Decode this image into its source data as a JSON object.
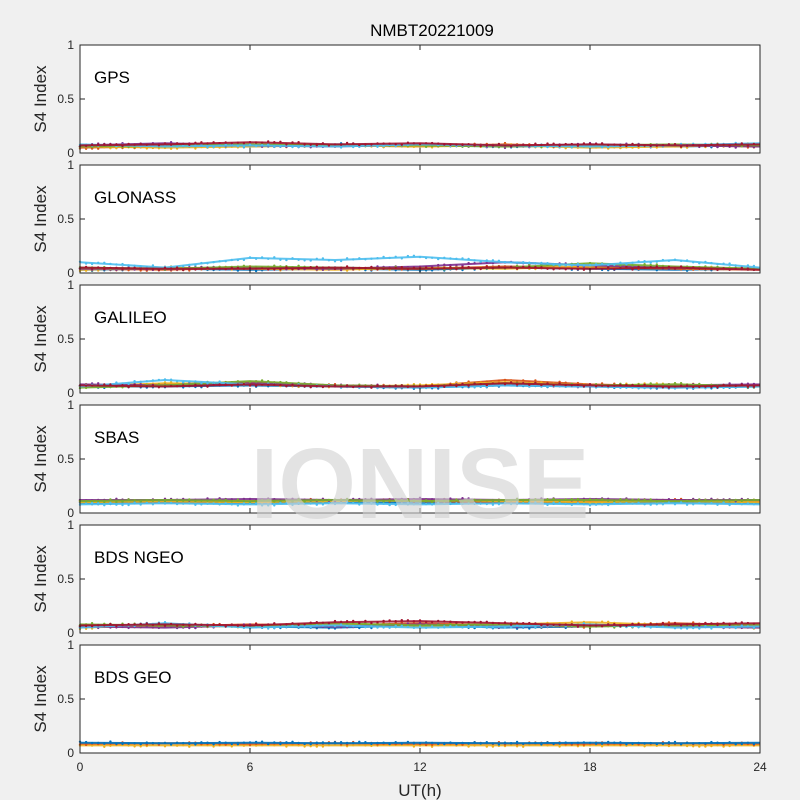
{
  "chart_data": {
    "type": "scatter",
    "title": "NMBT20221009",
    "xlabel": "UT(h)",
    "ylabel": "S4 Index",
    "xlim": [
      0,
      24
    ],
    "ylim": [
      0,
      1
    ],
    "xticks": [
      "0",
      "6",
      "12",
      "18",
      "24"
    ],
    "yticks": [
      "0",
      "0.5",
      "1"
    ],
    "grid": false,
    "watermark": "IONISE",
    "series_colors": [
      "#0072bd",
      "#d95319",
      "#edb120",
      "#7e2f8e",
      "#77ac30",
      "#4dbeee",
      "#a2142f"
    ],
    "panels": [
      {
        "name": "GPS",
        "tracks": [
          {
            "color": "#0072bd",
            "x": [
              0,
              3,
              6,
              9,
              12,
              15,
              18,
              21,
              24
            ],
            "y": [
              0.06,
              0.07,
              0.06,
              0.08,
              0.07,
              0.06,
              0.07,
              0.06,
              0.07
            ]
          },
          {
            "color": "#d95319",
            "x": [
              0,
              3,
              6,
              9,
              12,
              15,
              18,
              21,
              24
            ],
            "y": [
              0.05,
              0.06,
              0.08,
              0.07,
              0.06,
              0.08,
              0.06,
              0.07,
              0.06
            ]
          },
          {
            "color": "#edb120",
            "x": [
              0,
              3,
              6,
              9,
              12,
              15,
              18,
              21,
              24
            ],
            "y": [
              0.06,
              0.05,
              0.06,
              0.07,
              0.06,
              0.07,
              0.05,
              0.06,
              0.08
            ]
          },
          {
            "color": "#7e2f8e",
            "x": [
              0,
              3,
              6,
              9,
              12,
              15,
              18,
              21,
              24
            ],
            "y": [
              0.07,
              0.09,
              0.07,
              0.06,
              0.08,
              0.06,
              0.08,
              0.07,
              0.06
            ]
          },
          {
            "color": "#77ac30",
            "x": [
              0,
              3,
              6,
              9,
              12,
              15,
              18,
              21,
              24
            ],
            "y": [
              0.06,
              0.07,
              0.08,
              0.07,
              0.07,
              0.06,
              0.07,
              0.08,
              0.07
            ]
          },
          {
            "color": "#4dbeee",
            "x": [
              0,
              3,
              6,
              9,
              12,
              15,
              18,
              21,
              24
            ],
            "y": [
              0.08,
              0.06,
              0.07,
              0.06,
              0.08,
              0.07,
              0.06,
              0.07,
              0.09
            ]
          },
          {
            "color": "#a2142f",
            "x": [
              0,
              3,
              6,
              9,
              12,
              15,
              18,
              21,
              24
            ],
            "y": [
              0.07,
              0.08,
              0.1,
              0.08,
              0.09,
              0.07,
              0.08,
              0.07,
              0.08
            ]
          }
        ]
      },
      {
        "name": "GLONASS",
        "tracks": [
          {
            "color": "#0072bd",
            "x": [
              0,
              3,
              6,
              9,
              12,
              15,
              18,
              21,
              24
            ],
            "y": [
              0.03,
              0.04,
              0.03,
              0.04,
              0.03,
              0.05,
              0.04,
              0.03,
              0.04
            ]
          },
          {
            "color": "#d95319",
            "x": [
              0,
              3,
              6,
              9,
              12,
              15,
              18,
              21,
              24
            ],
            "y": [
              0.04,
              0.03,
              0.05,
              0.04,
              0.04,
              0.06,
              0.05,
              0.04,
              0.03
            ]
          },
          {
            "color": "#edb120",
            "x": [
              0,
              3,
              6,
              9,
              12,
              15,
              18,
              21,
              24
            ],
            "y": [
              0.03,
              0.05,
              0.04,
              0.03,
              0.05,
              0.04,
              0.06,
              0.05,
              0.04
            ]
          },
          {
            "color": "#7e2f8e",
            "x": [
              0,
              3,
              6,
              9,
              12,
              15,
              18,
              21,
              24
            ],
            "y": [
              0.04,
              0.04,
              0.05,
              0.04,
              0.06,
              0.1,
              0.07,
              0.05,
              0.04
            ]
          },
          {
            "color": "#77ac30",
            "x": [
              0,
              3,
              6,
              9,
              12,
              15,
              18,
              21,
              24
            ],
            "y": [
              0.05,
              0.04,
              0.06,
              0.05,
              0.04,
              0.05,
              0.09,
              0.06,
              0.04
            ]
          },
          {
            "color": "#4dbeee",
            "x": [
              0,
              3,
              6,
              9,
              12,
              15,
              18,
              21,
              24
            ],
            "y": [
              0.1,
              0.05,
              0.14,
              0.12,
              0.15,
              0.1,
              0.07,
              0.12,
              0.05
            ]
          },
          {
            "color": "#a2142f",
            "x": [
              0,
              3,
              6,
              9,
              12,
              15,
              18,
              21,
              24
            ],
            "y": [
              0.05,
              0.04,
              0.04,
              0.05,
              0.04,
              0.05,
              0.04,
              0.05,
              0.03
            ]
          }
        ]
      },
      {
        "name": "GALILEO",
        "tracks": [
          {
            "color": "#0072bd",
            "x": [
              0,
              3,
              6,
              9,
              12,
              15,
              18,
              21,
              24
            ],
            "y": [
              0.06,
              0.06,
              0.07,
              0.06,
              0.05,
              0.07,
              0.06,
              0.05,
              0.06
            ]
          },
          {
            "color": "#d95319",
            "x": [
              0,
              3,
              6,
              9,
              12,
              15,
              18,
              21,
              24
            ],
            "y": [
              0.07,
              0.08,
              0.1,
              0.07,
              0.06,
              0.12,
              0.08,
              0.06,
              0.07
            ]
          },
          {
            "color": "#edb120",
            "x": [
              0,
              3,
              6,
              9,
              12,
              15,
              18,
              21,
              24
            ],
            "y": [
              0.06,
              0.09,
              0.08,
              0.06,
              0.07,
              0.1,
              0.07,
              0.08,
              0.06
            ]
          },
          {
            "color": "#7e2f8e",
            "x": [
              0,
              3,
              6,
              9,
              12,
              15,
              18,
              21,
              24
            ],
            "y": [
              0.08,
              0.07,
              0.09,
              0.07,
              0.06,
              0.08,
              0.06,
              0.07,
              0.08
            ]
          },
          {
            "color": "#77ac30",
            "x": [
              0,
              3,
              6,
              9,
              12,
              15,
              18,
              21,
              24
            ],
            "y": [
              0.05,
              0.07,
              0.11,
              0.07,
              0.06,
              0.09,
              0.07,
              0.08,
              0.06
            ]
          },
          {
            "color": "#4dbeee",
            "x": [
              0,
              3,
              6,
              9,
              12,
              15,
              18,
              21,
              24
            ],
            "y": [
              0.06,
              0.12,
              0.08,
              0.06,
              0.05,
              0.07,
              0.06,
              0.05,
              0.06
            ]
          },
          {
            "color": "#a2142f",
            "x": [
              0,
              3,
              6,
              9,
              12,
              15,
              18,
              21,
              24
            ],
            "y": [
              0.07,
              0.06,
              0.08,
              0.06,
              0.06,
              0.09,
              0.07,
              0.06,
              0.07
            ]
          }
        ]
      },
      {
        "name": "SBAS",
        "tracks": [
          {
            "color": "#0072bd",
            "x": [
              0,
              3,
              6,
              9,
              12,
              15,
              18,
              21,
              24
            ],
            "y": [
              0.09,
              0.1,
              0.09,
              0.1,
              0.09,
              0.1,
              0.09,
              0.1,
              0.09
            ]
          },
          {
            "color": "#d95319",
            "x": [
              0,
              3,
              6,
              9,
              12,
              15,
              18,
              21,
              24
            ],
            "y": [
              0.11,
              0.1,
              0.11,
              0.12,
              0.11,
              0.1,
              0.11,
              0.12,
              0.11
            ]
          },
          {
            "color": "#edb120",
            "x": [
              0,
              3,
              6,
              9,
              12,
              15,
              18,
              21,
              24
            ],
            "y": [
              0.1,
              0.11,
              0.1,
              0.11,
              0.12,
              0.11,
              0.1,
              0.11,
              0.1
            ]
          },
          {
            "color": "#7e2f8e",
            "x": [
              0,
              3,
              6,
              9,
              12,
              15,
              18,
              21,
              24
            ],
            "y": [
              0.12,
              0.12,
              0.13,
              0.12,
              0.13,
              0.12,
              0.13,
              0.12,
              0.12
            ]
          },
          {
            "color": "#77ac30",
            "x": [
              0,
              3,
              6,
              9,
              12,
              15,
              18,
              21,
              24
            ],
            "y": [
              0.11,
              0.12,
              0.11,
              0.12,
              0.11,
              0.12,
              0.12,
              0.11,
              0.12
            ]
          },
          {
            "color": "#4dbeee",
            "x": [
              0,
              3,
              6,
              9,
              12,
              15,
              18,
              21,
              24
            ],
            "y": [
              0.08,
              0.09,
              0.08,
              0.09,
              0.08,
              0.09,
              0.08,
              0.09,
              0.08
            ]
          }
        ]
      },
      {
        "name": "BDS NGEO",
        "tracks": [
          {
            "color": "#0072bd",
            "x": [
              0,
              3,
              6,
              9,
              12,
              15,
              18,
              21,
              24
            ],
            "y": [
              0.06,
              0.08,
              0.06,
              0.05,
              0.07,
              0.05,
              0.06,
              0.08,
              0.06
            ]
          },
          {
            "color": "#d95319",
            "x": [
              0,
              3,
              6,
              9,
              12,
              15,
              18,
              21,
              24
            ],
            "y": [
              0.07,
              0.06,
              0.08,
              0.07,
              0.09,
              0.07,
              0.06,
              0.09,
              0.07
            ]
          },
          {
            "color": "#edb120",
            "x": [
              0,
              3,
              6,
              9,
              12,
              15,
              18,
              21,
              24
            ],
            "y": [
              0.05,
              0.07,
              0.06,
              0.08,
              0.06,
              0.08,
              0.1,
              0.07,
              0.05
            ]
          },
          {
            "color": "#7e2f8e",
            "x": [
              0,
              3,
              6,
              9,
              12,
              15,
              18,
              21,
              24
            ],
            "y": [
              0.06,
              0.05,
              0.07,
              0.06,
              0.08,
              0.06,
              0.07,
              0.06,
              0.05
            ]
          },
          {
            "color": "#77ac30",
            "x": [
              0,
              3,
              6,
              9,
              12,
              15,
              18,
              21,
              24
            ],
            "y": [
              0.08,
              0.07,
              0.06,
              0.09,
              0.07,
              0.08,
              0.06,
              0.07,
              0.08
            ]
          },
          {
            "color": "#4dbeee",
            "x": [
              0,
              3,
              6,
              9,
              12,
              15,
              18,
              21,
              24
            ],
            "y": [
              0.05,
              0.09,
              0.05,
              0.07,
              0.05,
              0.06,
              0.08,
              0.05,
              0.06
            ]
          },
          {
            "color": "#a2142f",
            "x": [
              0,
              3,
              6,
              9,
              12,
              15,
              18,
              21,
              24
            ],
            "y": [
              0.07,
              0.08,
              0.07,
              0.1,
              0.11,
              0.09,
              0.07,
              0.08,
              0.09
            ]
          }
        ]
      },
      {
        "name": "BDS GEO",
        "tracks": [
          {
            "color": "#edb120",
            "x": [
              0,
              3,
              6,
              9,
              12,
              15,
              18,
              21,
              24
            ],
            "y": [
              0.07,
              0.07,
              0.07,
              0.07,
              0.07,
              0.07,
              0.07,
              0.07,
              0.07
            ]
          },
          {
            "color": "#d95319",
            "x": [
              0,
              3,
              6,
              9,
              12,
              15,
              18,
              21,
              24
            ],
            "y": [
              0.085,
              0.09,
              0.085,
              0.09,
              0.085,
              0.09,
              0.085,
              0.09,
              0.085
            ]
          },
          {
            "color": "#0072bd",
            "x": [
              0,
              3,
              6,
              9,
              12,
              15,
              18,
              21,
              24
            ],
            "y": [
              0.095,
              0.09,
              0.095,
              0.09,
              0.095,
              0.09,
              0.095,
              0.09,
              0.095
            ]
          }
        ]
      }
    ]
  }
}
